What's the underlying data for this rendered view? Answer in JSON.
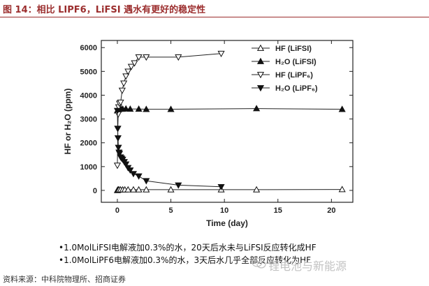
{
  "figure": {
    "title": "图 14：相比 LIPF6，LiFSI 遇水有更好的稳定性",
    "source": "资料来源：中科院物理所、招商证券",
    "watermark": "锂电池与新能源",
    "notes": [
      "•1.0MolLiFSI电解液加0.3%的水，20天后水未与LiFSI反应转化成HF",
      "•1.0MolLiPF6电解液加0.3%的水，3天后水几乎全部反应转化为HF"
    ]
  },
  "chart_data": {
    "type": "line",
    "title": "",
    "xlabel": "Time (day)",
    "ylabel": "HF or H₂O (ppm)",
    "xlim": [
      -1.5,
      22
    ],
    "ylim": [
      -500,
      6300
    ],
    "xticks": [
      0,
      5,
      10,
      15,
      20
    ],
    "yticks": [
      0,
      1000,
      2000,
      3000,
      4000,
      5000,
      6000
    ],
    "grid": false,
    "legend_position": "top-right",
    "series": [
      {
        "name": "HF (LiFSI)",
        "marker": "triangle-up-open",
        "x": [
          0,
          0.04,
          0.08,
          0.15,
          0.3,
          0.5,
          0.7,
          1.0,
          1.5,
          2.0,
          2.7,
          5.0,
          9.7,
          13.0,
          21.0
        ],
        "y": [
          0,
          20,
          30,
          30,
          30,
          30,
          30,
          30,
          30,
          30,
          30,
          30,
          30,
          30,
          40
        ]
      },
      {
        "name": "H₂O (LiFSI)",
        "marker": "triangle-up-filled",
        "x": [
          0,
          0.05,
          0.1,
          0.2,
          0.35,
          0.5,
          0.8,
          1.2,
          2.0,
          2.7,
          5.0,
          13.0,
          21.0
        ],
        "y": [
          3350,
          3380,
          3400,
          3420,
          3420,
          3420,
          3430,
          3420,
          3420,
          3410,
          3410,
          3440,
          3410
        ]
      },
      {
        "name": "HF (LiPF₆)",
        "marker": "triangle-down-open",
        "x": [
          0,
          0.04,
          0.08,
          0.12,
          0.2,
          0.3,
          0.45,
          0.6,
          0.8,
          1.0,
          1.3,
          1.6,
          2.0,
          2.7,
          5.7,
          9.7
        ],
        "y": [
          1050,
          2600,
          3200,
          3500,
          3650,
          3700,
          4200,
          4500,
          4800,
          5000,
          5200,
          5350,
          5600,
          5600,
          5600,
          5750
        ]
      },
      {
        "name": "H₂O (LiPF₆)",
        "marker": "triangle-down-filled",
        "x": [
          0,
          0.03,
          0.06,
          0.1,
          0.15,
          0.2,
          0.3,
          0.4,
          0.5,
          0.65,
          0.8,
          1.0,
          1.2,
          1.5,
          2.0,
          2.7,
          5.7,
          9.7
        ],
        "y": [
          3350,
          2600,
          2200,
          1800,
          1600,
          1550,
          1400,
          1350,
          1300,
          1200,
          1100,
          950,
          850,
          700,
          600,
          400,
          220,
          150
        ]
      }
    ]
  }
}
